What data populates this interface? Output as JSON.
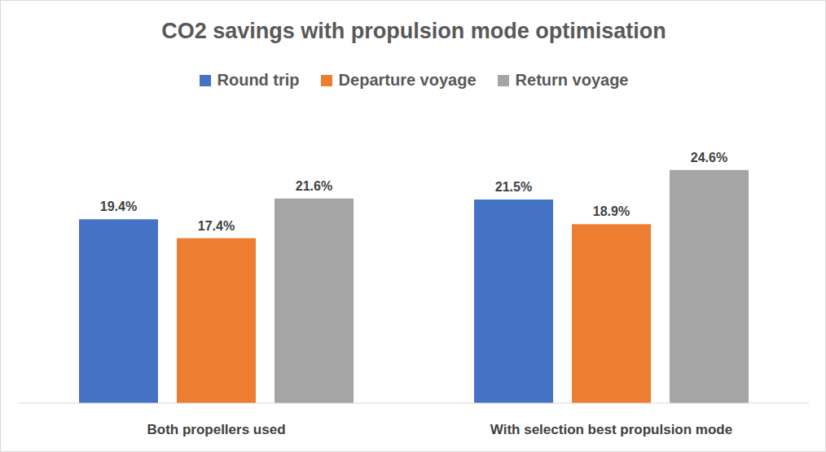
{
  "chart_data": {
    "type": "bar",
    "title": "CO2 savings with propulsion mode optimisation",
    "categories": [
      "Both propellers used",
      "With selection best propulsion mode"
    ],
    "series": [
      {
        "name": "Round trip",
        "color": "#4472c4",
        "values": [
          19.4,
          21.5
        ],
        "value_labels": [
          "19.4%",
          "21.5%"
        ]
      },
      {
        "name": "Departure voyage",
        "color": "#ed7d31",
        "values": [
          17.4,
          18.9
        ],
        "value_labels": [
          "17.4%",
          "18.9%"
        ]
      },
      {
        "name": "Return voyage",
        "color": "#a5a5a5",
        "values": [
          21.6,
          24.6
        ],
        "value_labels": [
          "21.6%",
          "24.6%"
        ]
      }
    ],
    "ylim": [
      0,
      30
    ],
    "tick_labels": "x",
    "legend": "top",
    "data_labels": true,
    "grid": false
  }
}
